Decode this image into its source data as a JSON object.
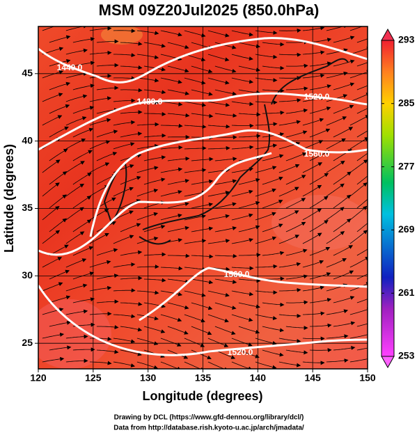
{
  "title": "MSM 09Z20Jul2025 (850.0hPa)",
  "x_axis": {
    "label": "Longitude (degrees)",
    "lim": [
      120,
      150
    ],
    "ticks": [
      120,
      125,
      130,
      135,
      140,
      145,
      150
    ]
  },
  "y_axis": {
    "label": "Latitude  (degrees)",
    "lim": [
      23.1,
      48.5
    ],
    "ticks": [
      25,
      30,
      35,
      40,
      45
    ]
  },
  "colorbar": {
    "lim": [
      253,
      293
    ],
    "ticks": [
      253,
      261,
      269,
      277,
      285,
      293
    ]
  },
  "contour_labels": [
    "1440.0",
    "1480.0",
    "1520.0",
    "1560.0",
    "1560.0",
    "1520.0"
  ],
  "credits": [
    "Drawing by DCL (https://www.gfd-dennou.org/library/dcl/)",
    "Data from http://database.rish.kyoto-u.ac.jp/arch/jmadata/"
  ]
}
